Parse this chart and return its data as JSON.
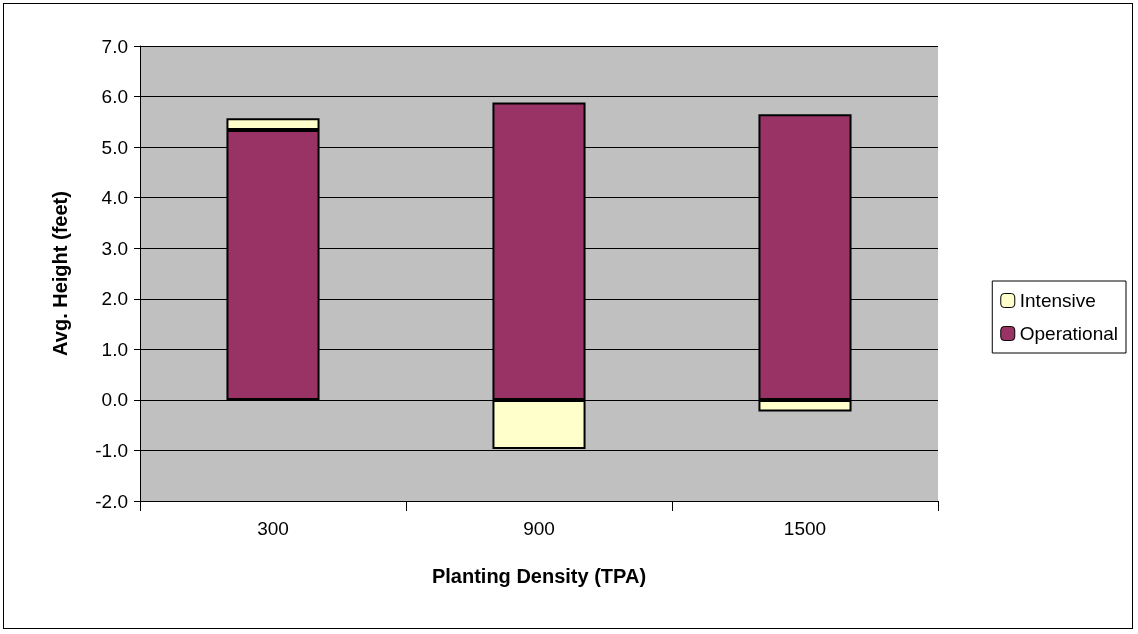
{
  "chart_data": {
    "type": "bar",
    "stacked": true,
    "xlabel": "Planting Density (TPA)",
    "ylabel": "Avg. Height (feet)",
    "categories": [
      "300",
      "900",
      "1500"
    ],
    "series": [
      {
        "name": "Operational",
        "color": "#993366",
        "values": [
          5.34,
          5.88,
          5.65
        ]
      },
      {
        "name": "Intensive",
        "color": "#ffffcc",
        "values": [
          0.23,
          -0.97,
          -0.23
        ]
      }
    ],
    "ylim": [
      -2,
      7
    ],
    "yticks": [
      {
        "value": -2,
        "label": "-2.0"
      },
      {
        "value": -1,
        "label": "-1.0"
      },
      {
        "value": 0,
        "label": "0.0"
      },
      {
        "value": 1,
        "label": "1.0"
      },
      {
        "value": 2,
        "label": "2.0"
      },
      {
        "value": 3,
        "label": "3.0"
      },
      {
        "value": 4,
        "label": "4.0"
      },
      {
        "value": 5,
        "label": "5.0"
      },
      {
        "value": 6,
        "label": "6.0"
      },
      {
        "value": 7,
        "label": "7.0"
      }
    ],
    "grid": "y",
    "legend": "right"
  }
}
